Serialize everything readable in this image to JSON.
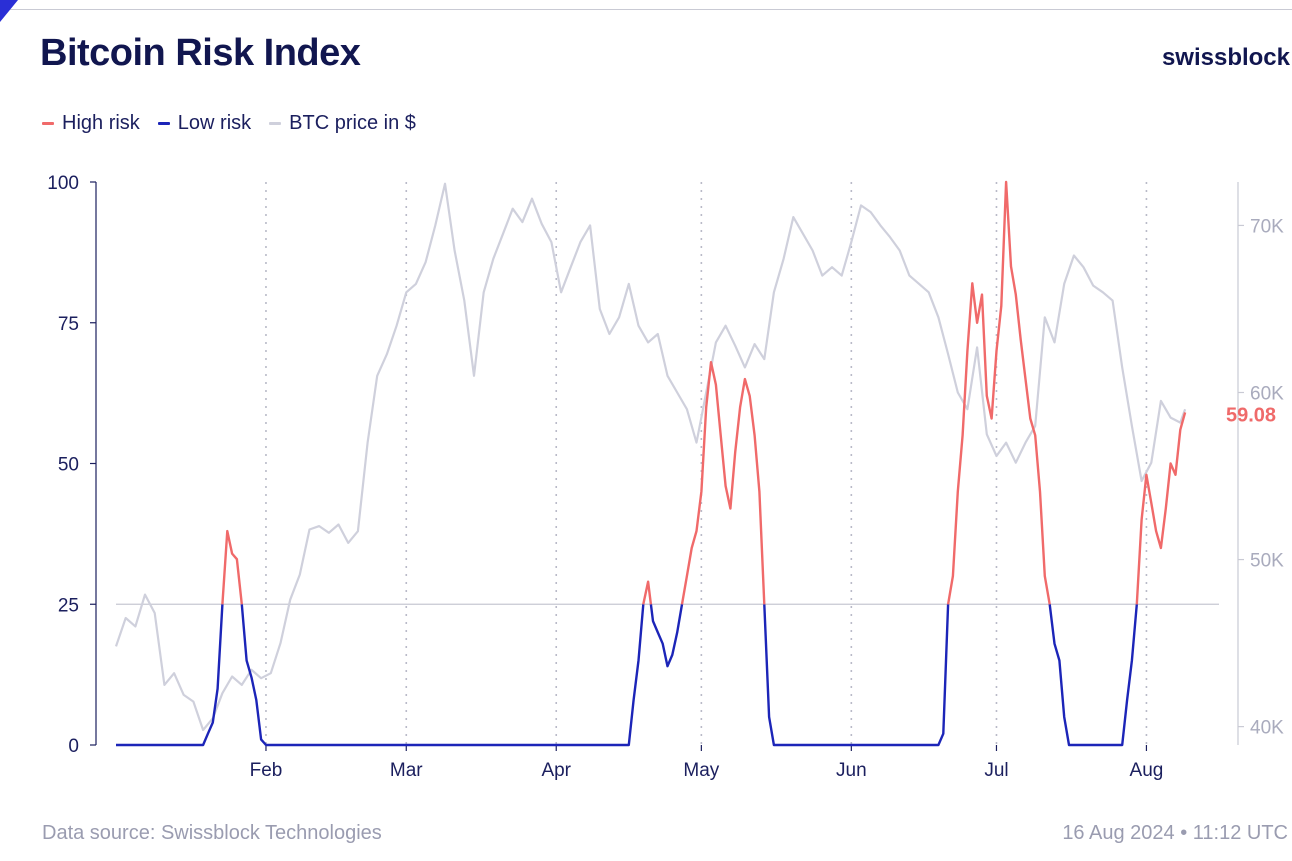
{
  "header": {
    "title": "Bitcoin Risk Index",
    "brand": "swissblock"
  },
  "legend": [
    {
      "label": "High risk",
      "color": "#f06a6a"
    },
    {
      "label": "Low risk",
      "color": "#1c25b8"
    },
    {
      "label": "BTC price in $",
      "color": "#cfd0dc"
    }
  ],
  "footer": {
    "source": "Data source: Swissblock Technologies",
    "timestamp": "16 Aug 2024 • 11:12 UTC"
  },
  "chart_data": {
    "type": "line",
    "title": "Bitcoin Risk Index",
    "y_left": {
      "range": [
        0,
        100
      ],
      "ticks": [
        0,
        25,
        50,
        75,
        100
      ],
      "tick_labels": [
        "0",
        "25",
        "50",
        "75",
        "100"
      ]
    },
    "y_right": {
      "range": [
        38900,
        72600
      ],
      "ticks": [
        40000,
        50000,
        60000,
        70000
      ],
      "tick_labels": [
        "40K",
        "50K",
        "60K",
        "70K"
      ]
    },
    "x_axis": {
      "months": [
        {
          "label": "Feb",
          "day": 31
        },
        {
          "label": "Mar",
          "day": 60
        },
        {
          "label": "Apr",
          "day": 91
        },
        {
          "label": "May",
          "day": 121
        },
        {
          "label": "Jun",
          "day": 152
        },
        {
          "label": "Jul",
          "day": 182
        },
        {
          "label": "Aug",
          "day": 213
        }
      ],
      "day_range": [
        0,
        228
      ]
    },
    "threshold": 25,
    "end_value_label": "59.08",
    "series": [
      {
        "name": "Risk index",
        "color_high": "#f06a6a",
        "color_low": "#1c25b8",
        "points": [
          [
            0,
            0
          ],
          [
            18,
            0
          ],
          [
            19,
            2
          ],
          [
            20,
            4
          ],
          [
            21,
            10
          ],
          [
            22,
            25
          ],
          [
            23,
            38
          ],
          [
            24,
            34
          ],
          [
            25,
            33
          ],
          [
            26,
            25
          ],
          [
            27,
            15
          ],
          [
            28,
            12
          ],
          [
            29,
            8
          ],
          [
            30,
            1
          ],
          [
            31,
            0
          ],
          [
            106,
            0
          ],
          [
            107,
            8
          ],
          [
            108,
            15
          ],
          [
            109,
            25
          ],
          [
            110,
            29
          ],
          [
            111,
            22
          ],
          [
            112,
            20
          ],
          [
            113,
            18
          ],
          [
            114,
            14
          ],
          [
            115,
            16
          ],
          [
            116,
            20
          ],
          [
            117,
            25
          ],
          [
            118,
            30
          ],
          [
            119,
            35
          ],
          [
            120,
            38
          ],
          [
            121,
            45
          ],
          [
            122,
            60
          ],
          [
            123,
            68
          ],
          [
            124,
            64
          ],
          [
            125,
            55
          ],
          [
            126,
            46
          ],
          [
            127,
            42
          ],
          [
            128,
            52
          ],
          [
            129,
            60
          ],
          [
            130,
            65
          ],
          [
            131,
            62
          ],
          [
            132,
            55
          ],
          [
            133,
            45
          ],
          [
            134,
            25
          ],
          [
            135,
            5
          ],
          [
            136,
            0
          ],
          [
            170,
            0
          ],
          [
            171,
            2
          ],
          [
            172,
            25
          ],
          [
            173,
            30
          ],
          [
            174,
            45
          ],
          [
            175,
            55
          ],
          [
            176,
            70
          ],
          [
            177,
            82
          ],
          [
            178,
            75
          ],
          [
            179,
            80
          ],
          [
            180,
            62
          ],
          [
            181,
            58
          ],
          [
            182,
            70
          ],
          [
            183,
            78
          ],
          [
            184,
            100
          ],
          [
            185,
            85
          ],
          [
            186,
            80
          ],
          [
            187,
            72
          ],
          [
            188,
            65
          ],
          [
            189,
            58
          ],
          [
            190,
            55
          ],
          [
            191,
            45
          ],
          [
            192,
            30
          ],
          [
            193,
            25
          ],
          [
            194,
            18
          ],
          [
            195,
            15
          ],
          [
            196,
            5
          ],
          [
            197,
            0
          ],
          [
            208,
            0
          ],
          [
            209,
            8
          ],
          [
            210,
            15
          ],
          [
            211,
            25
          ],
          [
            212,
            40
          ],
          [
            213,
            48
          ],
          [
            214,
            43
          ],
          [
            215,
            38
          ],
          [
            216,
            35
          ],
          [
            217,
            42
          ],
          [
            218,
            50
          ],
          [
            219,
            48
          ],
          [
            220,
            56
          ],
          [
            221,
            59.08
          ]
        ]
      },
      {
        "name": "BTC price in $",
        "color": "#cfd0dc",
        "points": [
          [
            0,
            44800
          ],
          [
            2,
            46500
          ],
          [
            4,
            46000
          ],
          [
            6,
            47900
          ],
          [
            8,
            46800
          ],
          [
            10,
            42500
          ],
          [
            12,
            43200
          ],
          [
            14,
            41900
          ],
          [
            16,
            41500
          ],
          [
            18,
            39800
          ],
          [
            20,
            40500
          ],
          [
            22,
            42000
          ],
          [
            24,
            43000
          ],
          [
            26,
            42500
          ],
          [
            28,
            43400
          ],
          [
            30,
            42900
          ],
          [
            32,
            43200
          ],
          [
            34,
            45000
          ],
          [
            36,
            47600
          ],
          [
            38,
            49100
          ],
          [
            40,
            51800
          ],
          [
            42,
            52000
          ],
          [
            44,
            51600
          ],
          [
            46,
            52100
          ],
          [
            48,
            51000
          ],
          [
            50,
            51700
          ],
          [
            52,
            57000
          ],
          [
            54,
            61000
          ],
          [
            56,
            62300
          ],
          [
            58,
            64000
          ],
          [
            60,
            66000
          ],
          [
            62,
            66500
          ],
          [
            64,
            67800
          ],
          [
            66,
            70000
          ],
          [
            68,
            72500
          ],
          [
            70,
            68500
          ],
          [
            72,
            65500
          ],
          [
            74,
            61000
          ],
          [
            76,
            66000
          ],
          [
            78,
            68000
          ],
          [
            80,
            69500
          ],
          [
            82,
            71000
          ],
          [
            84,
            70200
          ],
          [
            86,
            71600
          ],
          [
            88,
            70100
          ],
          [
            90,
            69000
          ],
          [
            92,
            66000
          ],
          [
            94,
            67500
          ],
          [
            96,
            69000
          ],
          [
            98,
            70000
          ],
          [
            100,
            65000
          ],
          [
            102,
            63500
          ],
          [
            104,
            64500
          ],
          [
            106,
            66500
          ],
          [
            108,
            64000
          ],
          [
            110,
            63000
          ],
          [
            112,
            63500
          ],
          [
            114,
            61000
          ],
          [
            116,
            60000
          ],
          [
            118,
            59000
          ],
          [
            120,
            57000
          ],
          [
            122,
            60000
          ],
          [
            124,
            63000
          ],
          [
            126,
            64000
          ],
          [
            128,
            62800
          ],
          [
            130,
            61500
          ],
          [
            132,
            62900
          ],
          [
            134,
            62000
          ],
          [
            136,
            66000
          ],
          [
            138,
            68000
          ],
          [
            140,
            70500
          ],
          [
            142,
            69500
          ],
          [
            144,
            68500
          ],
          [
            146,
            67000
          ],
          [
            148,
            67500
          ],
          [
            150,
            67000
          ],
          [
            152,
            69000
          ],
          [
            154,
            71200
          ],
          [
            156,
            70800
          ],
          [
            158,
            70000
          ],
          [
            160,
            69300
          ],
          [
            162,
            68500
          ],
          [
            164,
            67000
          ],
          [
            166,
            66500
          ],
          [
            168,
            66000
          ],
          [
            170,
            64500
          ],
          [
            172,
            62300
          ],
          [
            174,
            60000
          ],
          [
            176,
            59000
          ],
          [
            178,
            62700
          ],
          [
            180,
            57500
          ],
          [
            182,
            56200
          ],
          [
            184,
            57000
          ],
          [
            186,
            55800
          ],
          [
            188,
            57000
          ],
          [
            190,
            58000
          ],
          [
            192,
            64500
          ],
          [
            194,
            63000
          ],
          [
            196,
            66500
          ],
          [
            198,
            68200
          ],
          [
            200,
            67500
          ],
          [
            202,
            66400
          ],
          [
            204,
            66000
          ],
          [
            206,
            65500
          ],
          [
            208,
            61500
          ],
          [
            210,
            58000
          ],
          [
            212,
            54700
          ],
          [
            214,
            55800
          ],
          [
            216,
            59500
          ],
          [
            218,
            58500
          ],
          [
            220,
            58200
          ],
          [
            221,
            59000
          ]
        ]
      }
    ]
  }
}
